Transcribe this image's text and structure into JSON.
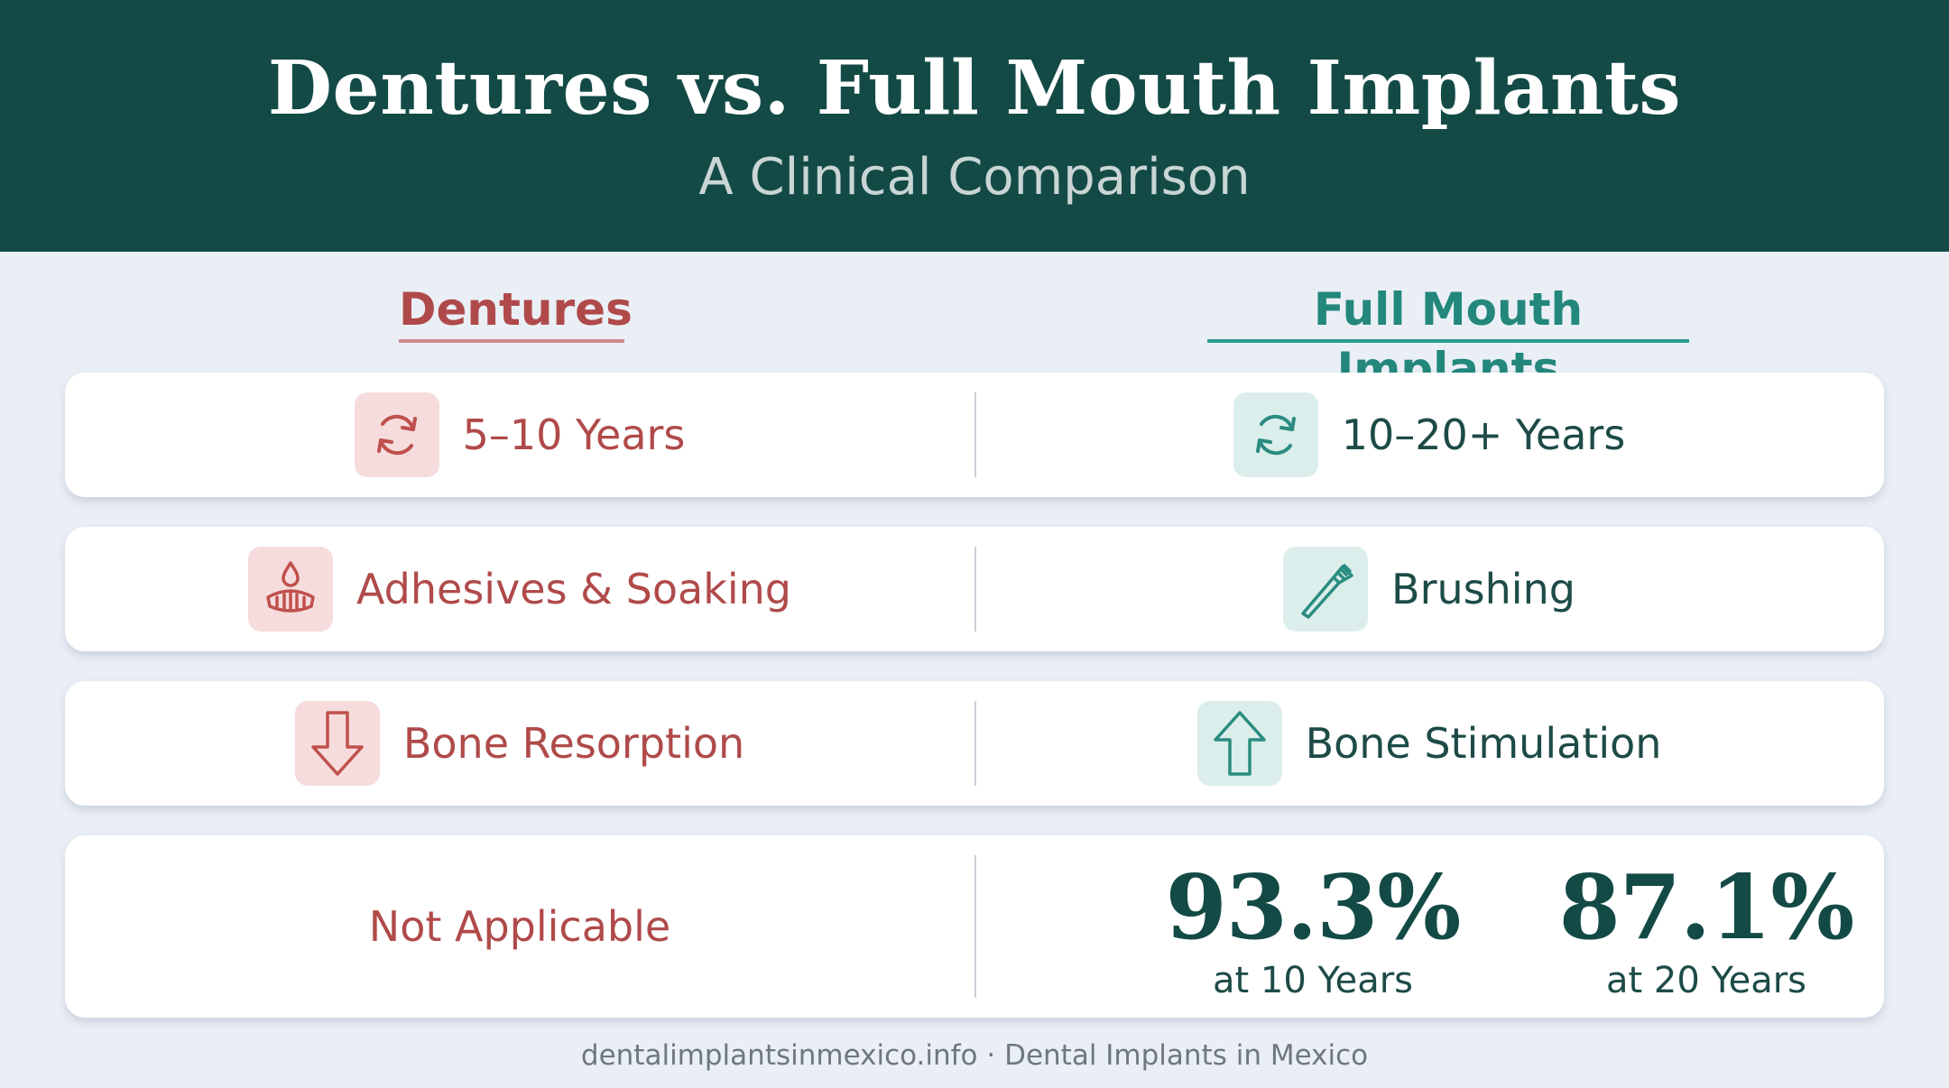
{
  "header": {
    "title": "Dentures vs. Full Mouth Implants",
    "subtitle": "A Clinical Comparison"
  },
  "columns": {
    "left": "Dentures",
    "right": "Full Mouth Implants"
  },
  "rows": [
    {
      "left": {
        "icon": "refresh-icon",
        "text": "5–10 Years"
      },
      "right": {
        "icon": "refresh-icon",
        "text": "10–20+ Years"
      }
    },
    {
      "left": {
        "icon": "denture-drop-icon",
        "text": "Adhesives & Soaking"
      },
      "right": {
        "icon": "toothbrush-icon",
        "text": "Brushing"
      }
    },
    {
      "left": {
        "icon": "arrow-down-icon",
        "text": "Bone Resorption"
      },
      "right": {
        "icon": "arrow-up-icon",
        "text": "Bone Stimulation"
      }
    }
  ],
  "survival": {
    "left": "Not Applicable",
    "stats": [
      {
        "value": "93.3%",
        "label": "at 10 Years"
      },
      {
        "value": "87.1%",
        "label": "at 20 Years"
      }
    ]
  },
  "footer": "dentalimplantsinmexico.info · Dental Implants in Mexico",
  "colors": {
    "header_bg": "#134a46",
    "denture_red": "#b04a4a",
    "implant_teal": "#23877c",
    "background": "#eaeff6"
  }
}
